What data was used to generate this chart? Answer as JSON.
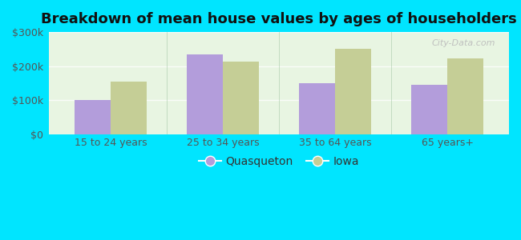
{
  "title": "Breakdown of mean house values by ages of householders",
  "categories": [
    "15 to 24 years",
    "25 to 34 years",
    "35 to 64 years",
    "65 years+"
  ],
  "quasqueton": [
    100000,
    235000,
    150000,
    145000
  ],
  "iowa": [
    155000,
    213000,
    252000,
    222000
  ],
  "quasqueton_color": "#b39ddb",
  "iowa_color": "#c5ce96",
  "background_outer": "#00e5ff",
  "background_inner_top": "#e8f5e0",
  "background_inner_bottom": "#d4edda",
  "ylim": [
    0,
    300000
  ],
  "yticks": [
    0,
    100000,
    200000,
    300000
  ],
  "ytick_labels": [
    "$0",
    "$100k",
    "$200k",
    "$300k"
  ],
  "legend_quasqueton": "Quasqueton",
  "legend_iowa": "Iowa",
  "bar_width": 0.32,
  "title_fontsize": 13,
  "tick_fontsize": 9,
  "legend_fontsize": 10,
  "watermark": "City-Data.com",
  "grid_color": "#c8e6c0",
  "tick_color": "#555555"
}
